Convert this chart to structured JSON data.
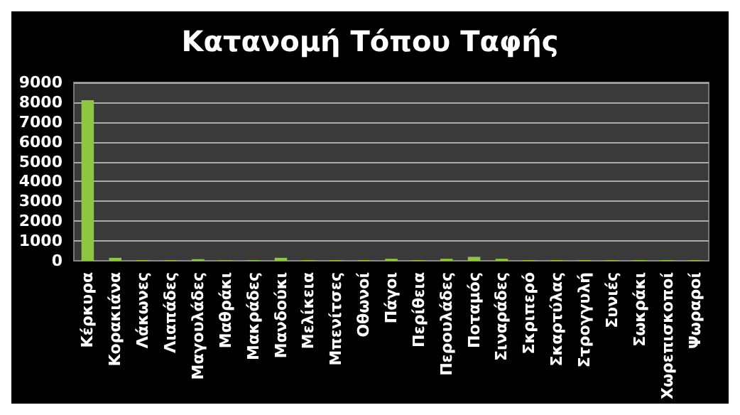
{
  "chart_data": {
    "type": "bar",
    "title": "Κατανομή Τόπου Ταφής",
    "categories": [
      "Κέρκυρα",
      "Κορακιάνα",
      "Λάκωνες",
      "Λιαπάδες",
      "Μαγουλάδες",
      "Μαθράκι",
      "Μακράδες",
      "Μανδούκι",
      "Μελίκεια",
      "Μπενίτσες",
      "Οθωνοί",
      "Πάγοι",
      "Περίθεια",
      "Περουλάδες",
      "Ποταμός",
      "Σιναράδες",
      "Σκριπερό",
      "Σκαρτύλας",
      "Στρογγυλή",
      "Συνιές",
      "Σωκράκι",
      "Χωρεπισκοποί",
      "Ψωραροί"
    ],
    "values": [
      8100,
      150,
      30,
      30,
      80,
      20,
      30,
      150,
      30,
      30,
      30,
      100,
      30,
      100,
      200,
      100,
      30,
      30,
      30,
      30,
      30,
      30,
      30
    ],
    "color": "#8dc63f",
    "ylim": [
      0,
      9000
    ],
    "yticks": [
      0,
      1000,
      2000,
      3000,
      4000,
      5000,
      6000,
      7000,
      8000,
      9000
    ],
    "grid": "y"
  }
}
